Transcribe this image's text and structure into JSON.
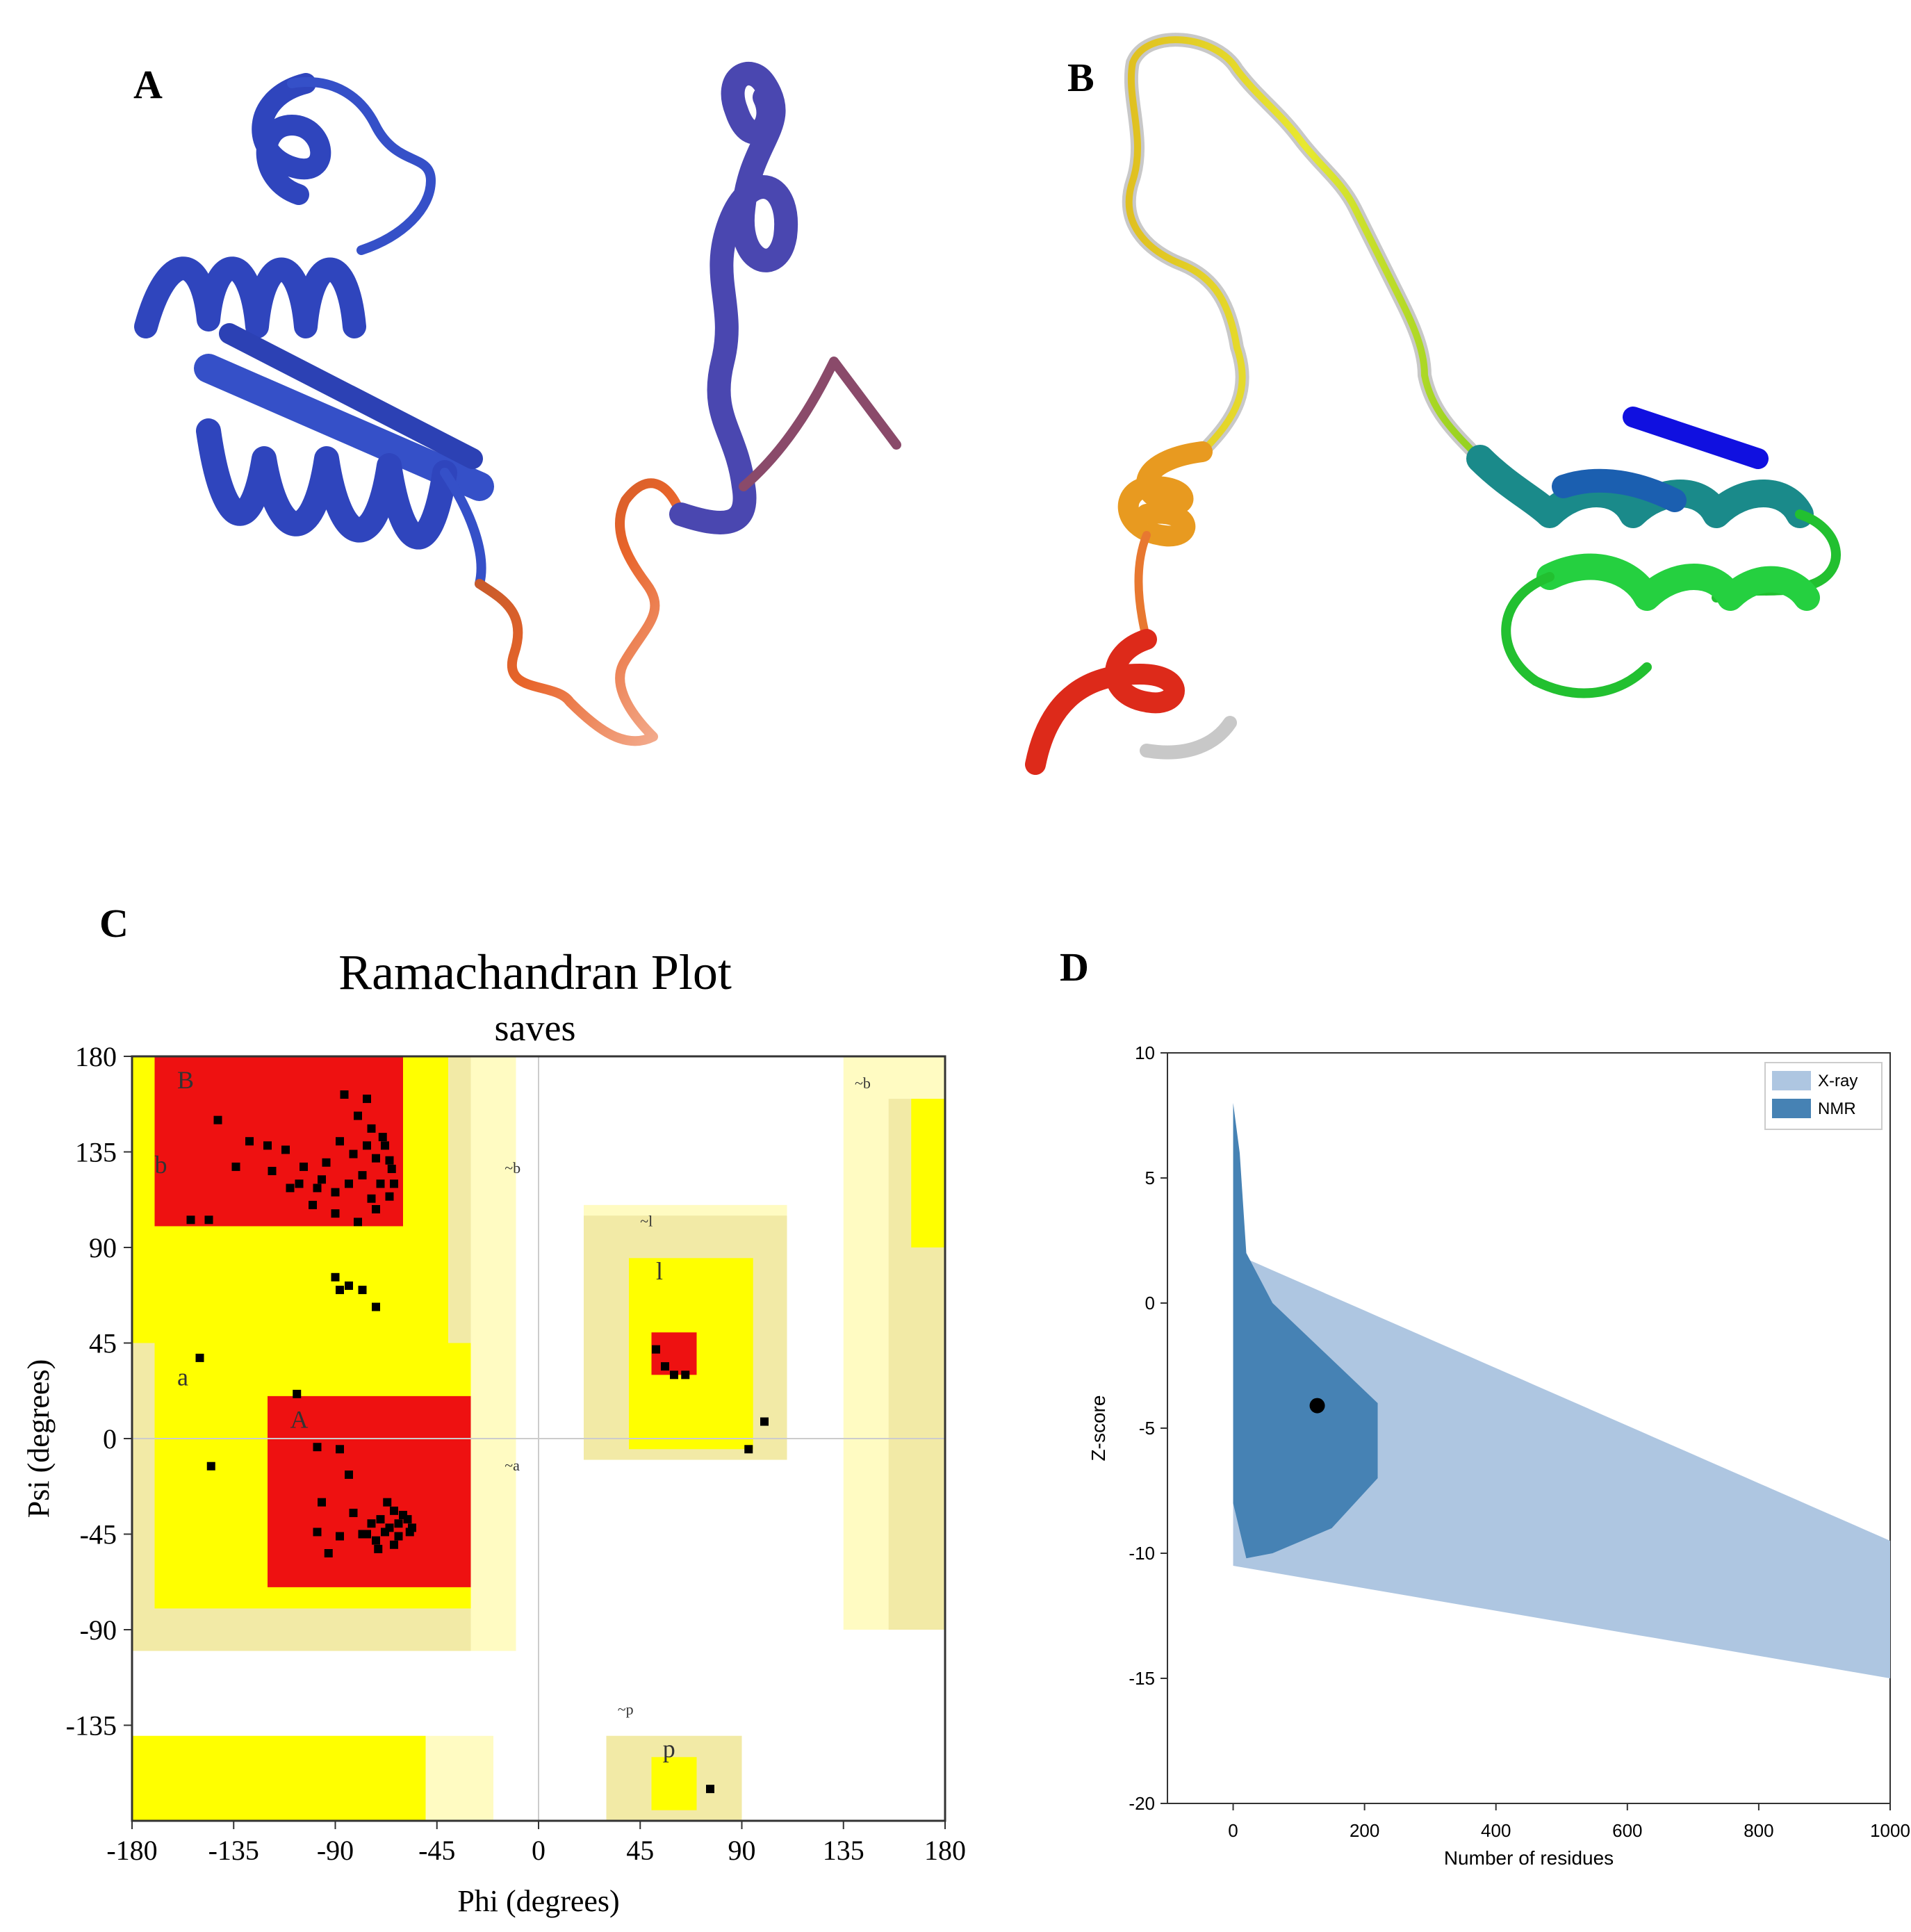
{
  "panels": {
    "a_label": "A",
    "b_label": "B",
    "c_label": "C",
    "d_label": "D"
  },
  "colors": {
    "helix_blue": "#3550c8",
    "helix_purple": "#4a47b0",
    "loop_orange": "#e8642a",
    "favoured_red": "#ee1111",
    "allowed_yellow": "#ffff00",
    "generous_tan": "#f2eaa6",
    "disallowed_pale": "#fffbc2",
    "xray_color": "#aec6e1",
    "nmr_color": "#4682b4"
  },
  "chart_data": [
    {
      "type": "scatter",
      "title": "Ramachandran Plot",
      "subtitle": "saves",
      "xlabel": "Phi (degrees)",
      "ylabel": "Psi (degrees)",
      "xlim": [
        -180,
        180
      ],
      "ylim": [
        -180,
        180
      ],
      "xticks": [
        "-180",
        "-135",
        "-90",
        "-45",
        "0",
        "45",
        "90",
        "135",
        "180"
      ],
      "yticks": [
        "180",
        "135",
        "90",
        "45",
        "0",
        "-45",
        "-90",
        "-135"
      ],
      "region_labels": {
        "B": "B",
        "b": "b",
        "A": "A",
        "a": "a",
        "l": "l",
        "p": "p",
        "tilde_b": "~b",
        "tilde_a": "~a",
        "tilde_l": "~l",
        "tilde_p": "~p"
      },
      "residues": [
        [
          -142,
          150
        ],
        [
          -128,
          140
        ],
        [
          -120,
          138
        ],
        [
          -112,
          136
        ],
        [
          -104,
          128
        ],
        [
          -96,
          122
        ],
        [
          -90,
          116
        ],
        [
          -84,
          120
        ],
        [
          -78,
          124
        ],
        [
          -72,
          132
        ],
        [
          -68,
          138
        ],
        [
          -74,
          146
        ],
        [
          -80,
          152
        ],
        [
          -76,
          160
        ],
        [
          -86,
          162
        ],
        [
          -70,
          120
        ],
        [
          -66,
          114
        ],
        [
          -72,
          108
        ],
        [
          -80,
          102
        ],
        [
          -90,
          106
        ],
        [
          -100,
          110
        ],
        [
          -110,
          118
        ],
        [
          -118,
          126
        ],
        [
          -134,
          128
        ],
        [
          -65,
          127
        ],
        [
          -69,
          142
        ],
        [
          -82,
          134
        ],
        [
          -94,
          130
        ],
        [
          -88,
          140
        ],
        [
          -98,
          118
        ],
        [
          -106,
          120
        ],
        [
          -74,
          113
        ],
        [
          -64,
          120
        ],
        [
          -66,
          131
        ],
        [
          -76,
          138
        ],
        [
          -154,
          103
        ],
        [
          -146,
          103
        ],
        [
          -90,
          76
        ],
        [
          -88,
          70
        ],
        [
          -84,
          72
        ],
        [
          -78,
          70
        ],
        [
          -72,
          62
        ],
        [
          -150,
          38
        ],
        [
          -107,
          21
        ],
        [
          -145,
          -13
        ],
        [
          -98,
          -4
        ],
        [
          -88,
          -5
        ],
        [
          -84,
          -17
        ],
        [
          -96,
          -30
        ],
        [
          -98,
          -44
        ],
        [
          -82,
          -35
        ],
        [
          -78,
          -45
        ],
        [
          -70,
          -38
        ],
        [
          -66,
          -42
        ],
        [
          -62,
          -40
        ],
        [
          -58,
          -38
        ],
        [
          -64,
          -34
        ],
        [
          -68,
          -44
        ],
        [
          -72,
          -48
        ],
        [
          -62,
          -46
        ],
        [
          -56,
          -42
        ],
        [
          -60,
          -36
        ],
        [
          -67,
          -30
        ],
        [
          -74,
          -40
        ],
        [
          -76,
          -45
        ],
        [
          -88,
          -46
        ],
        [
          -93,
          -54
        ],
        [
          -57,
          -44
        ],
        [
          -64,
          -50
        ],
        [
          -71,
          -52
        ],
        [
          52,
          42
        ],
        [
          56,
          34
        ],
        [
          60,
          30
        ],
        [
          65,
          30
        ],
        [
          100,
          8
        ],
        [
          93,
          -5
        ],
        [
          76,
          -165
        ]
      ]
    },
    {
      "type": "scatter",
      "title": "",
      "xlabel": "Number of residues",
      "ylabel": "Z-score",
      "xlim": [
        -100,
        1000
      ],
      "ylim": [
        -20,
        10
      ],
      "xticks": [
        "0",
        "200",
        "400",
        "600",
        "800",
        "1000"
      ],
      "yticks": [
        "10",
        "5",
        "0",
        "-5",
        "-10",
        "-15",
        "-20"
      ],
      "legend_position": "top-right",
      "series": [
        {
          "name": "X-ray",
          "color": "#aec6e1"
        },
        {
          "name": "NMR",
          "color": "#4682b4"
        }
      ],
      "highlight_point": {
        "x": 128,
        "y": -4.1
      }
    }
  ]
}
